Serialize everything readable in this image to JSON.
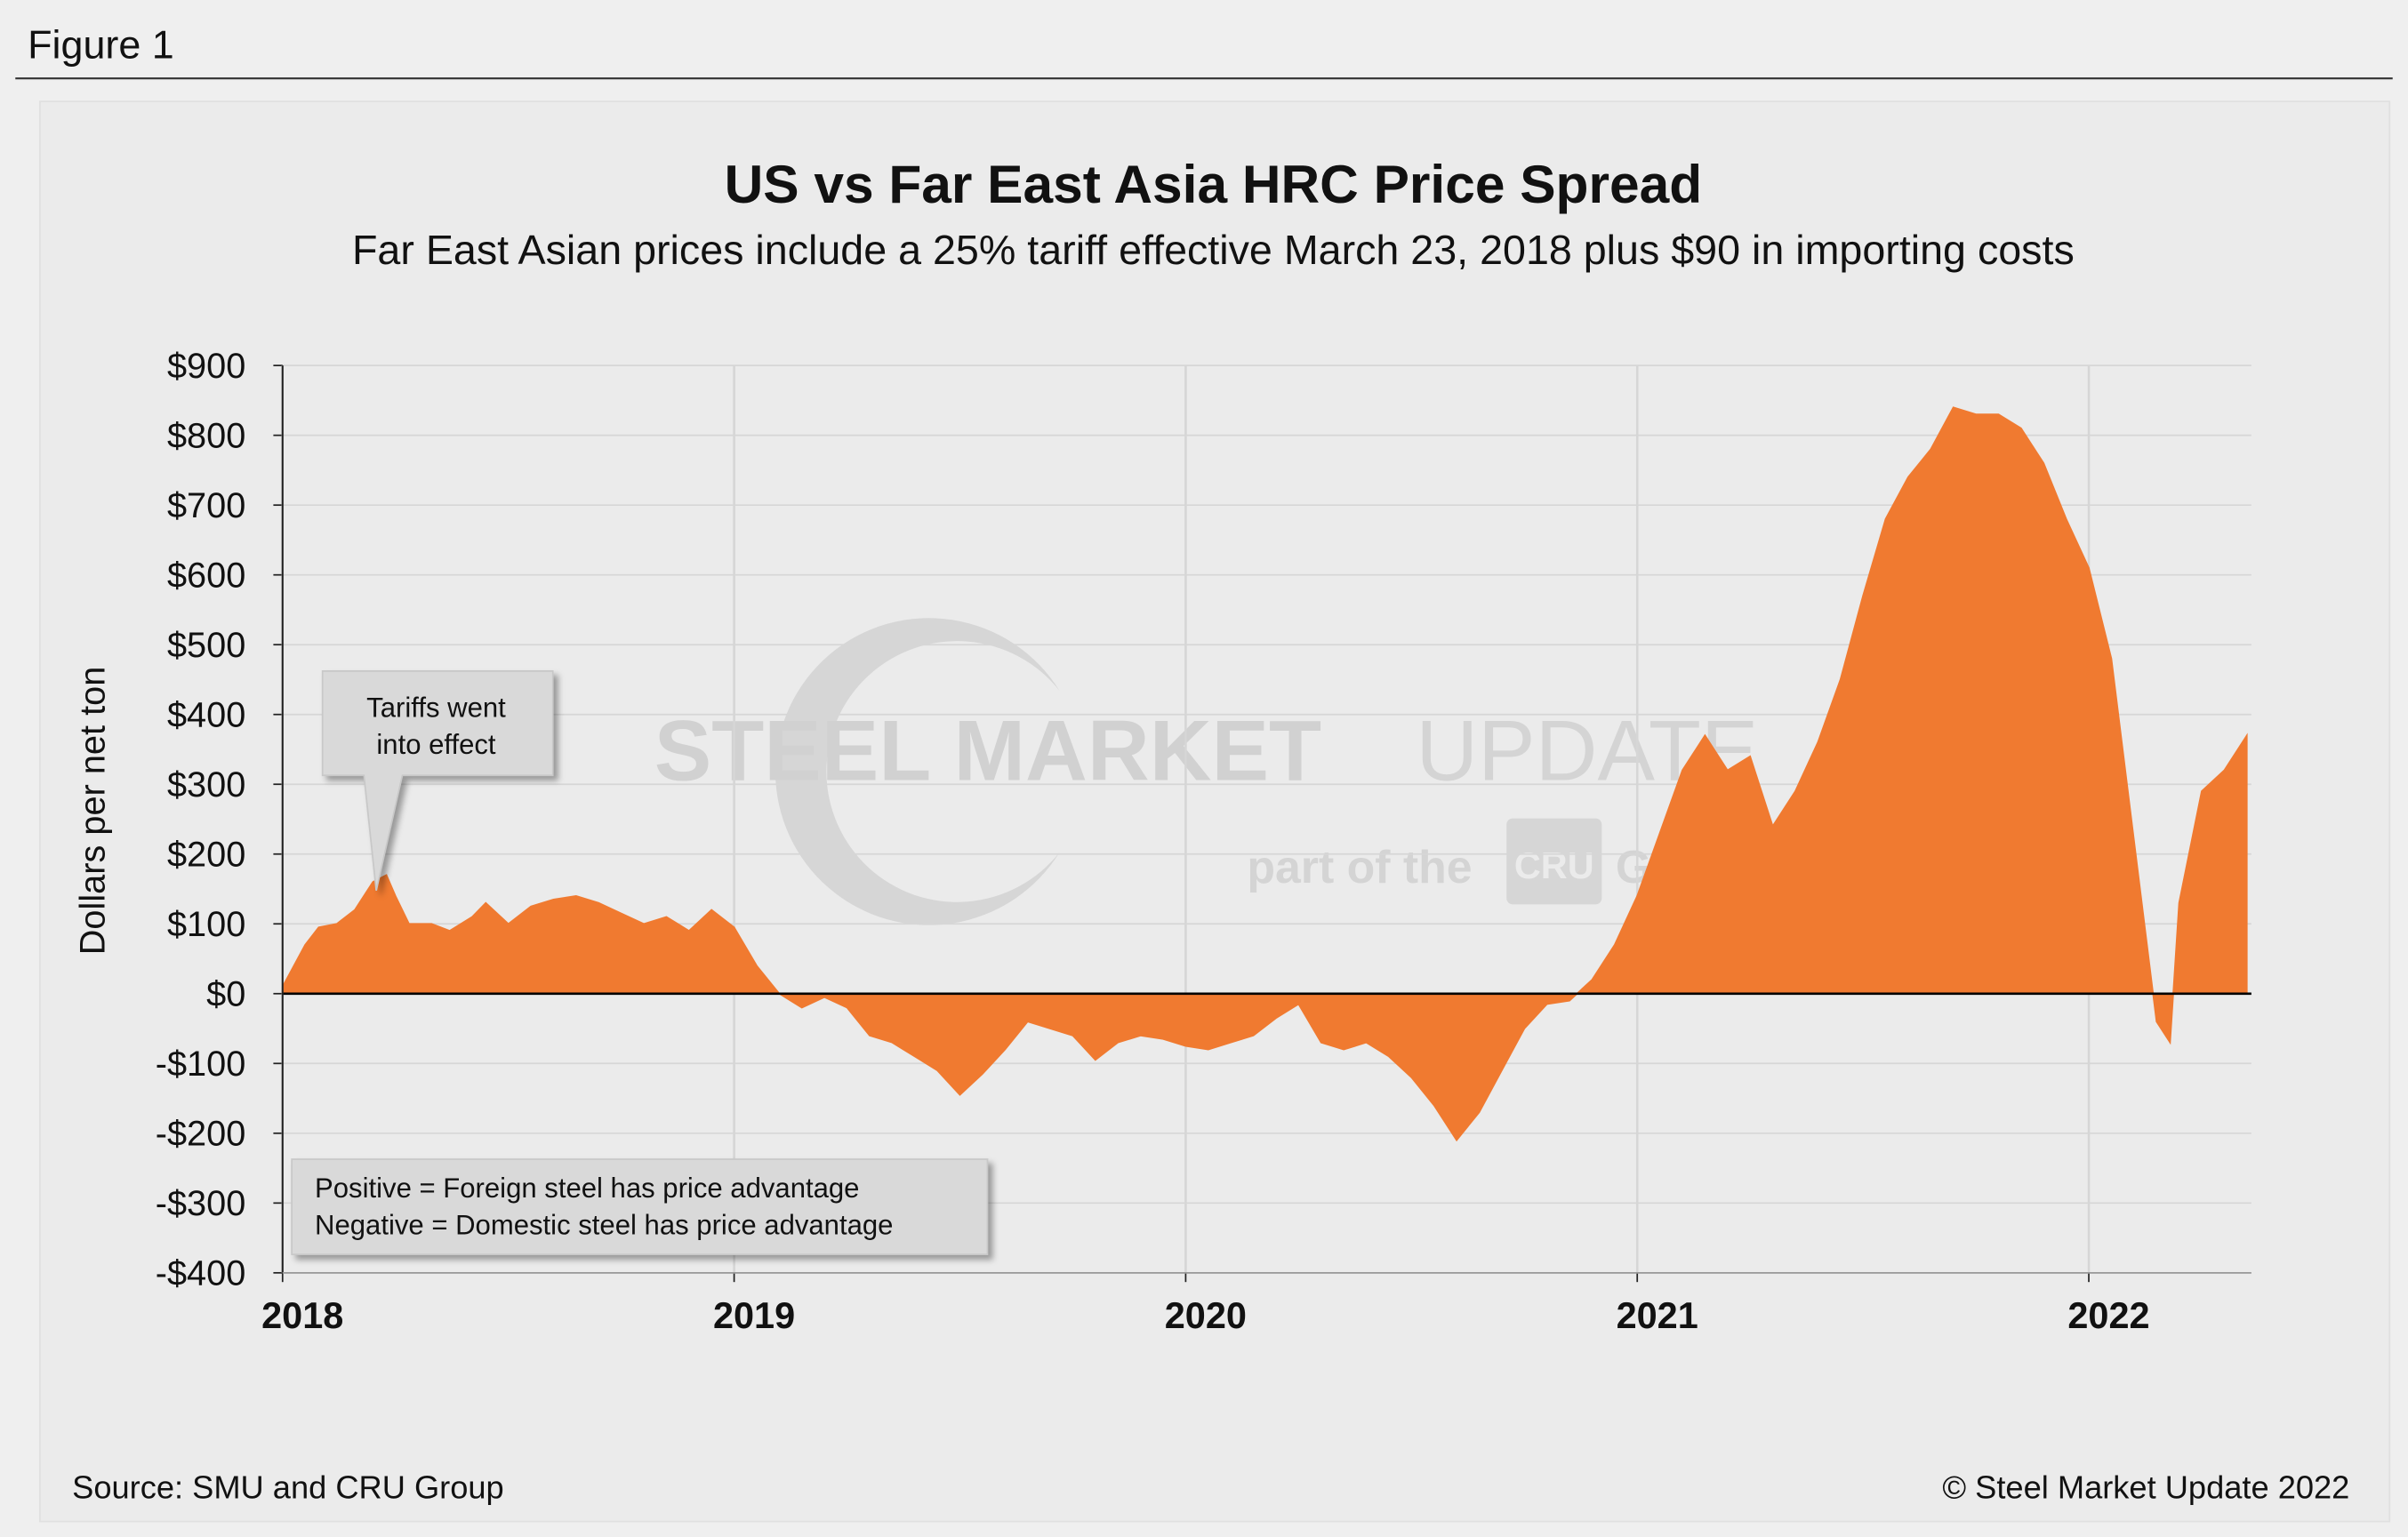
{
  "figure_label": "Figure 1",
  "chart_data": {
    "type": "area",
    "title": "US vs Far East Asia HRC Price Spread",
    "subtitle": "Far East Asian prices include a 25% tariff effective March 23, 2018 plus $90 in importing costs",
    "y_label": "Dollars per net ton",
    "annotation": [
      "Tariffs went",
      "into effect"
    ],
    "note": [
      "Positive = Foreign steel has price advantage",
      "Negative = Domestic steel has price advantage"
    ],
    "source": "Source: SMU and CRU Group",
    "copyright": "© Steel Market Update 2022",
    "watermark": [
      "STEEL MARKET",
      "UPDATE",
      "part of the",
      "CRU",
      "Group"
    ],
    "color": "#f07a30",
    "grid": true,
    "xlim": [
      2018,
      2022.36
    ],
    "xticks": [
      2018,
      2019,
      2020,
      2021,
      2022
    ],
    "ylim": [
      -400,
      900
    ],
    "yticks": [
      {
        "value": -400,
        "label": "-$400"
      },
      {
        "value": -300,
        "label": "-$300"
      },
      {
        "value": -200,
        "label": "-$200"
      },
      {
        "value": -100,
        "label": "-$100"
      },
      {
        "value": 0,
        "label": "$0"
      },
      {
        "value": 100,
        "label": "$100"
      },
      {
        "value": 200,
        "label": "$200"
      },
      {
        "value": 300,
        "label": "$300"
      },
      {
        "value": 400,
        "label": "$400"
      },
      {
        "value": 500,
        "label": "$500"
      },
      {
        "value": 600,
        "label": "$600"
      },
      {
        "value": 700,
        "label": "$700"
      },
      {
        "value": 800,
        "label": "$800"
      },
      {
        "value": 900,
        "label": "$900"
      }
    ],
    "x": [
      2018.0,
      2018.05,
      2018.08,
      2018.12,
      2018.16,
      2018.2,
      2018.23,
      2018.25,
      2018.28,
      2018.33,
      2018.37,
      2018.42,
      2018.45,
      2018.5,
      2018.55,
      2018.6,
      2018.65,
      2018.7,
      2018.75,
      2018.8,
      2018.85,
      2018.9,
      2018.95,
      2019.0,
      2019.05,
      2019.1,
      2019.15,
      2019.2,
      2019.25,
      2019.3,
      2019.35,
      2019.4,
      2019.45,
      2019.5,
      2019.55,
      2019.6,
      2019.65,
      2019.7,
      2019.75,
      2019.8,
      2019.85,
      2019.9,
      2019.95,
      2020.0,
      2020.05,
      2020.1,
      2020.15,
      2020.2,
      2020.25,
      2020.3,
      2020.35,
      2020.4,
      2020.45,
      2020.5,
      2020.55,
      2020.6,
      2020.65,
      2020.7,
      2020.75,
      2020.8,
      2020.85,
      2020.9,
      2020.95,
      2021.0,
      2021.05,
      2021.1,
      2021.15,
      2021.2,
      2021.25,
      2021.3,
      2021.35,
      2021.4,
      2021.45,
      2021.5,
      2021.55,
      2021.6,
      2021.65,
      2021.7,
      2021.75,
      2021.8,
      2021.85,
      2021.9,
      2021.95,
      2022.0,
      2022.05,
      2022.1,
      2022.15,
      2022.18,
      2022.2,
      2022.25,
      2022.3,
      2022.35
    ],
    "values": [
      10,
      70,
      95,
      100,
      120,
      160,
      170,
      140,
      100,
      100,
      90,
      110,
      130,
      100,
      125,
      135,
      140,
      130,
      115,
      100,
      110,
      90,
      120,
      95,
      40,
      0,
      -20,
      -5,
      -20,
      -60,
      -70,
      -90,
      -110,
      -145,
      -115,
      -80,
      -40,
      -50,
      -60,
      -95,
      -70,
      -60,
      -65,
      -75,
      -80,
      -70,
      -60,
      -35,
      -15,
      -70,
      -80,
      -70,
      -90,
      -120,
      -160,
      -210,
      -170,
      -110,
      -50,
      -15,
      -10,
      20,
      70,
      140,
      230,
      320,
      370,
      320,
      340,
      240,
      290,
      360,
      450,
      570,
      680,
      740,
      780,
      840,
      830,
      830,
      810,
      760,
      680,
      610,
      480,
      220,
      -40,
      -70,
      130,
      290,
      320,
      370
    ]
  }
}
